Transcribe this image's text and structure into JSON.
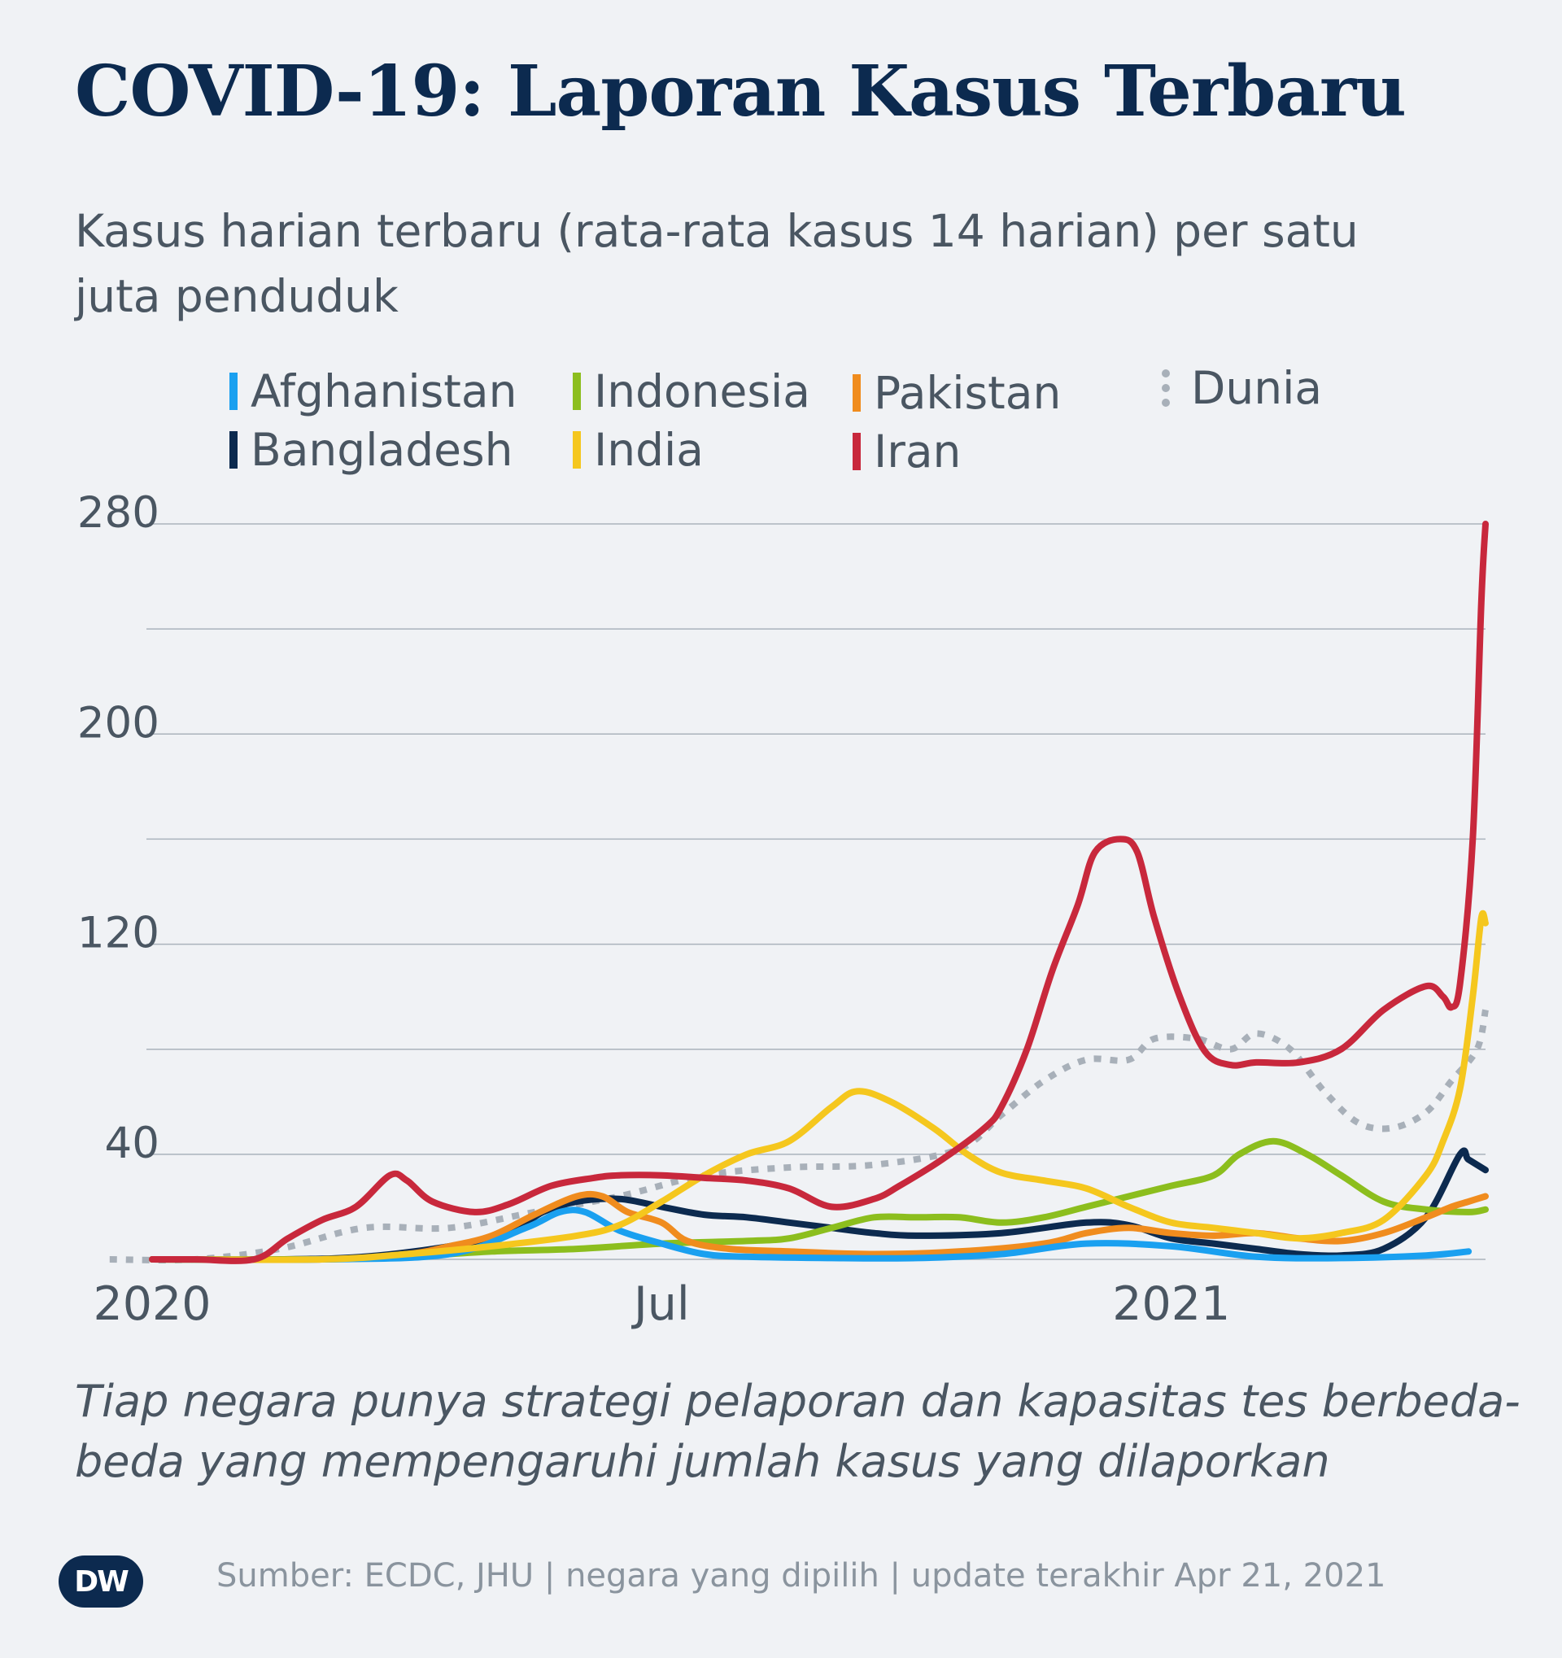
{
  "title": "COVID-19: Laporan Kasus Terbaru",
  "subtitle": "Kasus harian terbaru (rata-rata kasus 14 harian) per satu juta penduduk",
  "note": "Tiap negara punya strategi pelaporan dan kapasitas tes berbeda-beda yang mempengaruhi jumlah kasus yang dilaporkan",
  "source": "Sumber: ECDC, JHU | negara yang dipilih | update terakhir Apr 21, 2021",
  "logo_text": "DW",
  "chart_data": {
    "type": "line",
    "title": "COVID-19: Laporan Kasus Terbaru",
    "xlabel": "",
    "ylabel": "",
    "x_unit": "months since start of 2020",
    "xlim": [
      -0.5,
      15.7
    ],
    "ylim": [
      0,
      280
    ],
    "y_ticks": [
      40,
      120,
      200,
      280
    ],
    "y_gridlines": [
      0,
      40,
      80,
      120,
      160,
      200,
      240,
      280
    ],
    "x_ticks": [
      {
        "label": "2020",
        "value": 0
      },
      {
        "label": "Jul",
        "value": 6
      },
      {
        "label": "2021",
        "value": 12
      }
    ],
    "series": [
      {
        "name": "Afghanistan",
        "color": "#1aa0f0",
        "style": "solid",
        "legend_icon": "solid-bar",
        "points": [
          [
            0,
            0
          ],
          [
            2,
            0
          ],
          [
            3.5,
            2
          ],
          [
            4.4,
            12
          ],
          [
            4.8,
            18
          ],
          [
            5.1,
            18
          ],
          [
            5.5,
            11
          ],
          [
            6,
            6
          ],
          [
            6.5,
            2
          ],
          [
            7,
            1
          ],
          [
            8,
            0.5
          ],
          [
            9,
            0.5
          ],
          [
            10,
            2
          ],
          [
            11,
            6
          ],
          [
            12,
            5
          ],
          [
            13,
            1
          ],
          [
            14,
            0.5
          ],
          [
            15,
            1.5
          ],
          [
            15.5,
            3
          ]
        ]
      },
      {
        "name": "Bangladesh",
        "color": "#0c2a4f",
        "style": "solid",
        "legend_icon": "solid-bar",
        "points": [
          [
            0,
            0
          ],
          [
            1.5,
            0
          ],
          [
            2.5,
            1
          ],
          [
            3.5,
            5
          ],
          [
            4.2,
            10
          ],
          [
            4.6,
            18
          ],
          [
            5,
            22
          ],
          [
            5.5,
            23
          ],
          [
            6,
            20
          ],
          [
            6.5,
            17
          ],
          [
            7,
            16
          ],
          [
            7.5,
            14
          ],
          [
            8,
            12
          ],
          [
            8.5,
            10
          ],
          [
            9,
            9
          ],
          [
            10,
            10
          ],
          [
            11,
            14
          ],
          [
            11.5,
            13
          ],
          [
            12,
            8
          ],
          [
            12.5,
            6
          ],
          [
            13,
            4
          ],
          [
            13.5,
            2
          ],
          [
            14,
            1.5
          ],
          [
            14.5,
            4
          ],
          [
            15,
            16
          ],
          [
            15.4,
            40
          ],
          [
            15.5,
            38
          ],
          [
            15.7,
            34
          ]
        ]
      },
      {
        "name": "Indonesia",
        "color": "#8cbe1e",
        "style": "solid",
        "legend_icon": "solid-bar",
        "points": [
          [
            0,
            0
          ],
          [
            2,
            0
          ],
          [
            3,
            1
          ],
          [
            4,
            3
          ],
          [
            5,
            4
          ],
          [
            6,
            6
          ],
          [
            7,
            7
          ],
          [
            7.5,
            8
          ],
          [
            8,
            12
          ],
          [
            8.5,
            16
          ],
          [
            9,
            16
          ],
          [
            9.5,
            16
          ],
          [
            10,
            14
          ],
          [
            10.5,
            16
          ],
          [
            11,
            20
          ],
          [
            11.5,
            24
          ],
          [
            12,
            28
          ],
          [
            12.5,
            32
          ],
          [
            12.8,
            40
          ],
          [
            13.2,
            45
          ],
          [
            13.6,
            40
          ],
          [
            14,
            32
          ],
          [
            14.5,
            22
          ],
          [
            15,
            19
          ],
          [
            15.5,
            18
          ],
          [
            15.7,
            19
          ]
        ]
      },
      {
        "name": "India",
        "color": "#f5c71e",
        "style": "solid",
        "legend_icon": "solid-bar",
        "points": [
          [
            0,
            0
          ],
          [
            2,
            0
          ],
          [
            3,
            2
          ],
          [
            4,
            5
          ],
          [
            5,
            9
          ],
          [
            5.5,
            13
          ],
          [
            6,
            22
          ],
          [
            6.5,
            32
          ],
          [
            7,
            40
          ],
          [
            7.5,
            45
          ],
          [
            8,
            58
          ],
          [
            8.3,
            64
          ],
          [
            8.7,
            60
          ],
          [
            9.2,
            50
          ],
          [
            9.6,
            40
          ],
          [
            10,
            33
          ],
          [
            10.5,
            30
          ],
          [
            11,
            27
          ],
          [
            11.5,
            20
          ],
          [
            12,
            14
          ],
          [
            12.5,
            12
          ],
          [
            13,
            10
          ],
          [
            13.5,
            8
          ],
          [
            14,
            10
          ],
          [
            14.5,
            15
          ],
          [
            15,
            32
          ],
          [
            15.2,
            45
          ],
          [
            15.4,
            65
          ],
          [
            15.55,
            100
          ],
          [
            15.65,
            130
          ],
          [
            15.7,
            128
          ]
        ]
      },
      {
        "name": "Pakistan",
        "color": "#f08c1e",
        "style": "solid",
        "legend_icon": "solid-bar",
        "points": [
          [
            0,
            0
          ],
          [
            2,
            0
          ],
          [
            3,
            2
          ],
          [
            3.5,
            5
          ],
          [
            4,
            9
          ],
          [
            4.5,
            17
          ],
          [
            5,
            24
          ],
          [
            5.3,
            24
          ],
          [
            5.6,
            18
          ],
          [
            6,
            14
          ],
          [
            6.3,
            7
          ],
          [
            6.8,
            4
          ],
          [
            7.5,
            3
          ],
          [
            8.5,
            2
          ],
          [
            9.5,
            3
          ],
          [
            10.5,
            6
          ],
          [
            11,
            10
          ],
          [
            11.5,
            12
          ],
          [
            12,
            10
          ],
          [
            12.5,
            9
          ],
          [
            13,
            10
          ],
          [
            13.5,
            8
          ],
          [
            14,
            7
          ],
          [
            14.5,
            10
          ],
          [
            15,
            16
          ],
          [
            15.3,
            20
          ],
          [
            15.5,
            22
          ],
          [
            15.7,
            24
          ]
        ]
      },
      {
        "name": "Iran",
        "color": "#c8283c",
        "style": "solid",
        "legend_icon": "solid-bar",
        "points": [
          [
            0,
            0
          ],
          [
            0.5,
            0
          ],
          [
            1.2,
            0
          ],
          [
            1.6,
            8
          ],
          [
            2,
            15
          ],
          [
            2.4,
            20
          ],
          [
            2.8,
            32
          ],
          [
            3,
            30
          ],
          [
            3.3,
            22
          ],
          [
            3.8,
            18
          ],
          [
            4.2,
            21
          ],
          [
            4.7,
            28
          ],
          [
            5.2,
            31
          ],
          [
            5.5,
            32
          ],
          [
            6,
            32
          ],
          [
            6.5,
            31
          ],
          [
            7,
            30
          ],
          [
            7.5,
            27
          ],
          [
            8,
            20
          ],
          [
            8.5,
            23
          ],
          [
            8.8,
            28
          ],
          [
            9.3,
            38
          ],
          [
            9.8,
            50
          ],
          [
            10,
            58
          ],
          [
            10.3,
            80
          ],
          [
            10.6,
            110
          ],
          [
            10.9,
            135
          ],
          [
            11.1,
            155
          ],
          [
            11.4,
            160
          ],
          [
            11.6,
            155
          ],
          [
            11.8,
            130
          ],
          [
            12.1,
            100
          ],
          [
            12.4,
            79
          ],
          [
            12.7,
            74
          ],
          [
            13,
            75
          ],
          [
            13.5,
            75
          ],
          [
            14,
            80
          ],
          [
            14.5,
            95
          ],
          [
            15,
            104
          ],
          [
            15.2,
            100
          ],
          [
            15.3,
            96
          ],
          [
            15.4,
            105
          ],
          [
            15.55,
            160
          ],
          [
            15.65,
            250
          ],
          [
            15.7,
            280
          ]
        ]
      },
      {
        "name": "Dunia",
        "color": "#a8b0b9",
        "style": "dotted",
        "legend_icon": "dotted-bar",
        "points": [
          [
            -0.5,
            0
          ],
          [
            0.5,
            0
          ],
          [
            1.5,
            4
          ],
          [
            2.5,
            12
          ],
          [
            3.5,
            12
          ],
          [
            4.5,
            18
          ],
          [
            5.5,
            24
          ],
          [
            6.5,
            32
          ],
          [
            7.5,
            35
          ],
          [
            8.5,
            36
          ],
          [
            9.5,
            42
          ],
          [
            10,
            55
          ],
          [
            10.5,
            68
          ],
          [
            11,
            76
          ],
          [
            11.5,
            76
          ],
          [
            11.8,
            84
          ],
          [
            12.3,
            84
          ],
          [
            12.7,
            80
          ],
          [
            13,
            86
          ],
          [
            13.4,
            80
          ],
          [
            13.8,
            64
          ],
          [
            14.2,
            52
          ],
          [
            14.6,
            50
          ],
          [
            15,
            56
          ],
          [
            15.3,
            68
          ],
          [
            15.6,
            80
          ],
          [
            15.7,
            95
          ]
        ]
      }
    ]
  }
}
